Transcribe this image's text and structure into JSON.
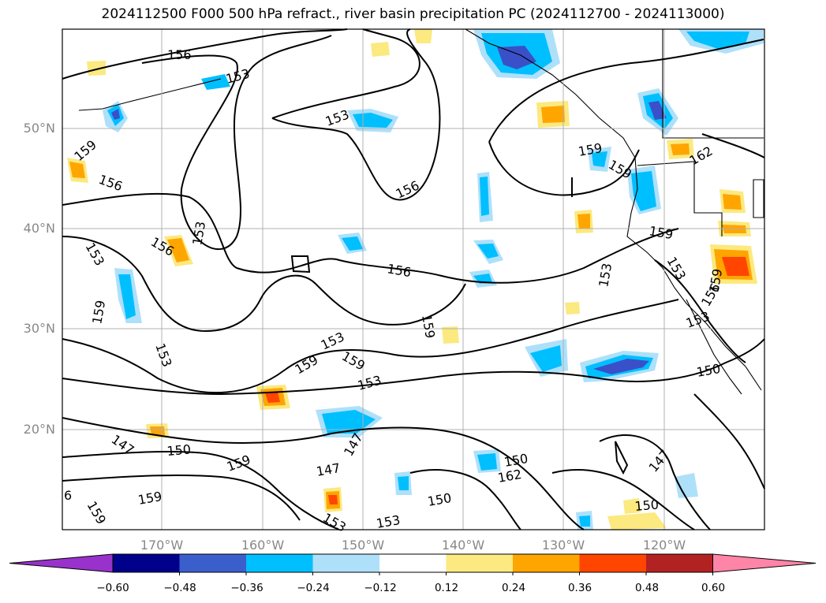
{
  "title": "2024112500 F000 500 hPa refract., river basin precipitation PC (2024112700 - 2024113000)",
  "map": {
    "lat_labels": [
      "50°N",
      "40°N",
      "30°N",
      "20°N"
    ],
    "lon_labels": [
      "170°W",
      "160°W",
      "150°W",
      "140°W",
      "130°W",
      "120°W"
    ],
    "contour_labels": [
      "156",
      "153",
      "153",
      "159",
      "156",
      "156",
      "153",
      "153",
      "156",
      "159",
      "153",
      "153",
      "153",
      "156",
      "159",
      "159",
      "153",
      "159",
      "159",
      "162",
      "159",
      "153",
      "159",
      "150",
      "147",
      "150",
      "159",
      "159",
      "6",
      "147",
      "147",
      "150",
      "153",
      "153",
      "159",
      "162",
      "147",
      "150",
      "150",
      "156",
      "153",
      "159"
    ],
    "colors": {
      "neg_strong": "#3a50c8",
      "neg_mid": "#00bfff",
      "neg_weak": "#aee0fa",
      "pos_weak": "#ffe58a",
      "pos_mid": "#ffa500",
      "pos_strong": "#ff4500",
      "contour": "#000000",
      "grid": "#b0b0b0",
      "coast": "#000000"
    }
  },
  "colorbar": {
    "ticks": [
      "−0.60",
      "−0.48",
      "−0.36",
      "−0.24",
      "−0.12",
      "0.12",
      "0.24",
      "0.36",
      "0.48",
      "0.60"
    ],
    "colors": [
      "#9932cc",
      "#00008b",
      "#3a5fcd",
      "#00bfff",
      "#aee0fa",
      "#ffffff",
      "#fce97f",
      "#ffa500",
      "#ff4500",
      "#b22222",
      "#ff85a8"
    ]
  }
}
